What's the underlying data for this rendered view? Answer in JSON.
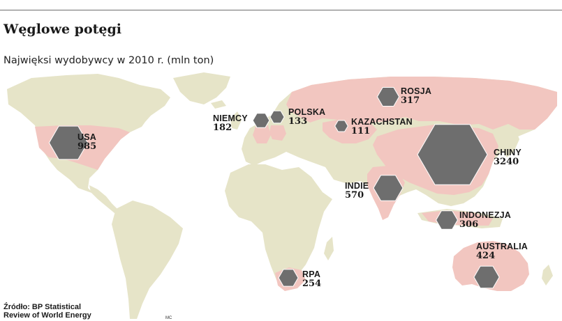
{
  "header": {
    "title": "Węglowe potęgi",
    "subtitle": "Najwięksi wydobywcy w 2010 r. (mln ton)"
  },
  "colors": {
    "land": "#e6e4c8",
    "producer": "#f2c6c0",
    "marker": "#6e6e6e",
    "marker_stroke": "#ffffff"
  },
  "chart_data": {
    "type": "map-bubble",
    "unit": "mln ton",
    "year": "2010",
    "countries": [
      {
        "name": "USA",
        "value": 985
      },
      {
        "name": "NIEMCY",
        "value": 182
      },
      {
        "name": "POLSKA",
        "value": 133
      },
      {
        "name": "ROSJA",
        "value": 317
      },
      {
        "name": "KAZACHSTAN",
        "value": 111
      },
      {
        "name": "CHINY",
        "value": 3240
      },
      {
        "name": "INDIE",
        "value": 570
      },
      {
        "name": "INDONEZJA",
        "value": 306
      },
      {
        "name": "AUSTRALIA",
        "value": 424
      },
      {
        "name": "RPA",
        "value": 254
      }
    ]
  },
  "footer": {
    "source_line1": "Źródło: BP Statistical",
    "source_line2": "Review of World Energy",
    "credit": "MC"
  }
}
